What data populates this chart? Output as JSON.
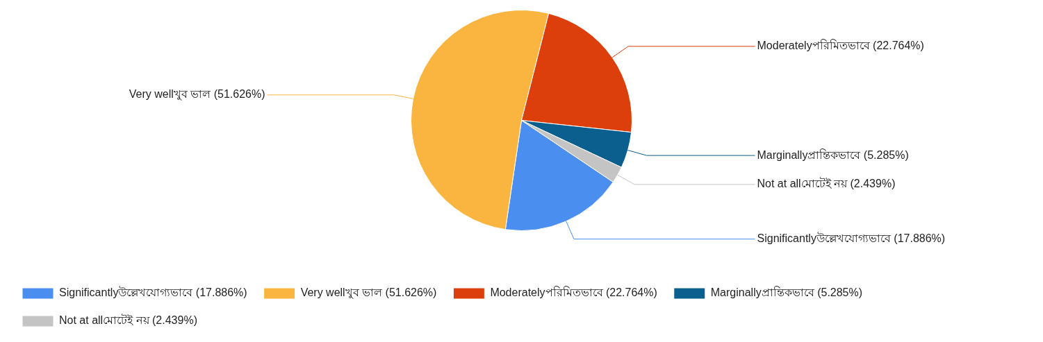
{
  "chart_data": {
    "type": "pie",
    "categories": [
      "Significantlyউল্লেখযোগ্যভাবে (17.886%)",
      "Very wellখুব ভাল (51.626%)",
      "Moderatelyপরিমিতভাবে (22.764%)",
      "Marginallyপ্রান্তিকভাবে (5.285%)",
      "Not at allমোটেই নয় (2.439%)"
    ],
    "values": [
      17.886,
      51.626,
      22.764,
      5.285,
      2.439
    ],
    "colors": [
      "#4a8ff0",
      "#f9b540",
      "#dc3f0c",
      "#0b5f8e",
      "#c4c4c4"
    ],
    "legend": "bottom"
  }
}
